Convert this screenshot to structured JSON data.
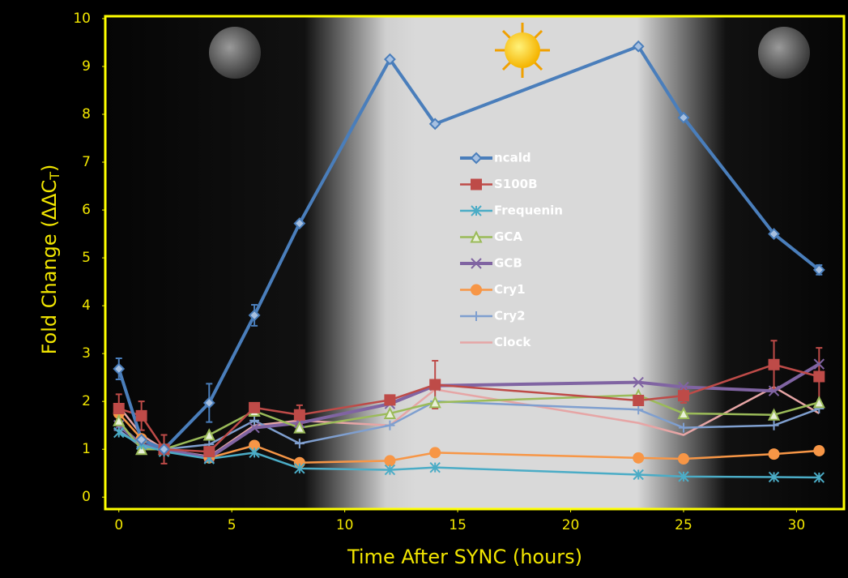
{
  "chart_data": {
    "type": "line",
    "xlabel": "Time After SYNC (hours)",
    "ylabel": {
      "text": "Fold Change (ΔΔC",
      "subscript": "T",
      "suffix": ")"
    },
    "x": [
      0,
      1,
      2,
      4,
      6,
      8,
      12,
      14,
      23,
      25,
      29,
      31
    ],
    "xlim": [
      -0.6,
      32.1
    ],
    "xticks": [
      0,
      5,
      10,
      15,
      20,
      25,
      30
    ],
    "ylim": [
      -0.25,
      10.05
    ],
    "yticks": [
      0,
      1,
      2,
      3,
      4,
      5,
      6,
      7,
      8,
      9,
      10
    ],
    "series": [
      {
        "name": "ncald",
        "color": "#4a7ebb",
        "marker": "diamond",
        "width": 4,
        "values": [
          2.68,
          1.2,
          1.0,
          1.97,
          3.8,
          5.72,
          9.15,
          7.8,
          9.42,
          7.93,
          5.5,
          4.75
        ],
        "errors": [
          0.22,
          0,
          0,
          0.4,
          0.22,
          0,
          0,
          0,
          0,
          0,
          0,
          0.1
        ]
      },
      {
        "name": "S100B",
        "color": "#be4b48",
        "marker": "square",
        "width": 2.5,
        "values": [
          1.85,
          1.7,
          1.0,
          0.95,
          1.87,
          1.72,
          2.03,
          2.35,
          2.02,
          2.12,
          2.77,
          2.52
        ],
        "errors": [
          0.3,
          0.3,
          0.3,
          0,
          0,
          0.2,
          0,
          0.5,
          0,
          0.15,
          0.5,
          0.6
        ]
      },
      {
        "name": "Frequenin",
        "color": "#4bacc6",
        "marker": "asterisk",
        "width": 2.5,
        "values": [
          1.35,
          1.1,
          0.95,
          0.8,
          0.93,
          0.6,
          0.57,
          0.62,
          0.47,
          0.43,
          0.42,
          0.41
        ]
      },
      {
        "name": "GCA",
        "color": "#9bbb59",
        "marker": "triangle",
        "width": 2.5,
        "values": [
          1.6,
          1.0,
          1.0,
          1.3,
          1.8,
          1.45,
          1.75,
          1.98,
          2.13,
          1.75,
          1.72,
          1.98
        ]
      },
      {
        "name": "GCB",
        "color": "#8064a2",
        "marker": "cross",
        "width": 4,
        "values": [
          1.5,
          1.1,
          1.0,
          0.82,
          1.45,
          1.55,
          1.95,
          2.33,
          2.4,
          2.3,
          2.22,
          2.78
        ]
      },
      {
        "name": "Cry1",
        "color": "#f79646",
        "marker": "circle",
        "width": 2.5,
        "values": [
          1.75,
          1.22,
          1.0,
          0.82,
          1.08,
          0.72,
          0.76,
          0.93,
          0.82,
          0.8,
          0.9,
          0.97
        ]
      },
      {
        "name": "Cry2",
        "color": "#7f9fcf",
        "marker": "plus",
        "width": 2.5,
        "values": [
          1.4,
          1.05,
          1.0,
          1.1,
          1.6,
          1.12,
          1.5,
          2.0,
          1.83,
          1.45,
          1.5,
          1.85
        ]
      },
      {
        "name": "Clock",
        "color": "#e6a5a5",
        "marker": "none",
        "width": 2.5,
        "values": [
          1.9,
          1.3,
          1.0,
          0.85,
          1.5,
          1.6,
          1.5,
          2.25,
          1.55,
          1.3,
          2.3,
          1.75
        ]
      }
    ]
  }
}
